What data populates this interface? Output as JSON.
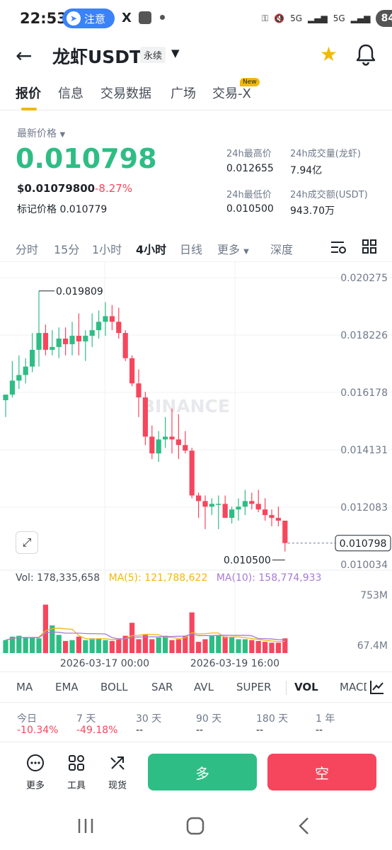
{
  "status_bar": {
    "time": "22:53",
    "notice": "注意",
    "x_glyph": "X",
    "signal_a": "5G",
    "signal_b": "5G",
    "battery": "84"
  },
  "header": {
    "title": "龙虾USDT",
    "tag": "永续",
    "icons": [
      "back-arrow-icon",
      "caret-down-icon",
      "star-icon",
      "bell-icon"
    ],
    "star_color": "#f0b90b"
  },
  "tabs": [
    {
      "label": "报价",
      "active": true
    },
    {
      "label": "信息"
    },
    {
      "label": "交易数据"
    },
    {
      "label": "广场"
    },
    {
      "label": "交易-X",
      "badge": "New"
    }
  ],
  "price": {
    "label": "最新价格",
    "last": "0.010798",
    "usd": "$0.01079800",
    "change": "-8.27%",
    "mark_label": "标记价格",
    "mark_value": "0.010779",
    "high_label": "24h最高价",
    "high_value": "0.012655",
    "low_label": "24h最低价",
    "low_value": "0.010500",
    "vol_label": "24h成交量(龙虾)",
    "vol_value": "7.94亿",
    "turnover_label": "24h成交额(USDT)",
    "turnover_value": "943.70万"
  },
  "intervals": [
    "分时",
    "15分",
    "1小时",
    "4小时",
    "日线",
    "更多",
    "深度"
  ],
  "active_interval": "4小时",
  "chart_data": {
    "type": "candlestick",
    "y_ticks": [
      "0.020275",
      "0.018226",
      "0.016178",
      "0.014131",
      "0.012083",
      "0.010034"
    ],
    "ylim": [
      0.010034,
      0.020275
    ],
    "watermark": "BINANCE",
    "high_annotation": "0.019809",
    "low_annotation": "0.010500",
    "current_price_label": "0.010798",
    "x_labels": [
      "2026-03-17 00:00",
      "2026-03-19 16:00"
    ],
    "colors": {
      "up": "#2ebd85",
      "down": "#f6465d"
    },
    "candles": [
      {
        "o": 0.0159,
        "h": 0.0161,
        "l": 0.0153,
        "c": 0.0161
      },
      {
        "o": 0.0161,
        "h": 0.0173,
        "l": 0.016,
        "c": 0.0166
      },
      {
        "o": 0.0166,
        "h": 0.0175,
        "l": 0.0163,
        "c": 0.0168
      },
      {
        "o": 0.0168,
        "h": 0.0174,
        "l": 0.0165,
        "c": 0.0171
      },
      {
        "o": 0.0171,
        "h": 0.0183,
        "l": 0.0169,
        "c": 0.0177
      },
      {
        "o": 0.0177,
        "h": 0.0198,
        "l": 0.0171,
        "c": 0.0183
      },
      {
        "o": 0.0183,
        "h": 0.0186,
        "l": 0.0175,
        "c": 0.0177
      },
      {
        "o": 0.0177,
        "h": 0.0184,
        "l": 0.0175,
        "c": 0.0178
      },
      {
        "o": 0.0178,
        "h": 0.0185,
        "l": 0.0174,
        "c": 0.0181
      },
      {
        "o": 0.0181,
        "h": 0.0185,
        "l": 0.0175,
        "c": 0.0179
      },
      {
        "o": 0.0179,
        "h": 0.0187,
        "l": 0.0175,
        "c": 0.0182
      },
      {
        "o": 0.0182,
        "h": 0.019,
        "l": 0.0175,
        "c": 0.018
      },
      {
        "o": 0.018,
        "h": 0.0184,
        "l": 0.0173,
        "c": 0.0182
      },
      {
        "o": 0.0182,
        "h": 0.019,
        "l": 0.0178,
        "c": 0.0184
      },
      {
        "o": 0.0184,
        "h": 0.0191,
        "l": 0.0181,
        "c": 0.0187
      },
      {
        "o": 0.0187,
        "h": 0.0194,
        "l": 0.0182,
        "c": 0.0189
      },
      {
        "o": 0.0189,
        "h": 0.0193,
        "l": 0.0184,
        "c": 0.0187
      },
      {
        "o": 0.0187,
        "h": 0.0192,
        "l": 0.0181,
        "c": 0.0183
      },
      {
        "o": 0.0183,
        "h": 0.0184,
        "l": 0.0173,
        "c": 0.0174
      },
      {
        "o": 0.0174,
        "h": 0.0175,
        "l": 0.0164,
        "c": 0.0165
      },
      {
        "o": 0.0165,
        "h": 0.017,
        "l": 0.0153,
        "c": 0.016
      },
      {
        "o": 0.016,
        "h": 0.0162,
        "l": 0.0143,
        "c": 0.0146
      },
      {
        "o": 0.0146,
        "h": 0.015,
        "l": 0.0138,
        "c": 0.014
      },
      {
        "o": 0.014,
        "h": 0.0148,
        "l": 0.0137,
        "c": 0.0145
      },
      {
        "o": 0.0145,
        "h": 0.0153,
        "l": 0.0142,
        "c": 0.0146
      },
      {
        "o": 0.0146,
        "h": 0.0156,
        "l": 0.014,
        "c": 0.0145
      },
      {
        "o": 0.0145,
        "h": 0.0154,
        "l": 0.0138,
        "c": 0.0143
      },
      {
        "o": 0.0143,
        "h": 0.0148,
        "l": 0.014,
        "c": 0.0141
      },
      {
        "o": 0.0141,
        "h": 0.0142,
        "l": 0.0124,
        "c": 0.0125
      },
      {
        "o": 0.0125,
        "h": 0.0126,
        "l": 0.0117,
        "c": 0.0123
      },
      {
        "o": 0.0123,
        "h": 0.0125,
        "l": 0.0113,
        "c": 0.0121
      },
      {
        "o": 0.0121,
        "h": 0.0124,
        "l": 0.0118,
        "c": 0.0122
      },
      {
        "o": 0.0122,
        "h": 0.0125,
        "l": 0.0113,
        "c": 0.0122
      },
      {
        "o": 0.0122,
        "h": 0.0125,
        "l": 0.0117,
        "c": 0.0117
      },
      {
        "o": 0.0117,
        "h": 0.0121,
        "l": 0.0115,
        "c": 0.012
      },
      {
        "o": 0.012,
        "h": 0.0124,
        "l": 0.0116,
        "c": 0.0121
      },
      {
        "o": 0.0121,
        "h": 0.0127,
        "l": 0.0118,
        "c": 0.0123
      },
      {
        "o": 0.0123,
        "h": 0.0126,
        "l": 0.012,
        "c": 0.0122
      },
      {
        "o": 0.0122,
        "h": 0.0127,
        "l": 0.0119,
        "c": 0.012
      },
      {
        "o": 0.012,
        "h": 0.0124,
        "l": 0.0116,
        "c": 0.0118
      },
      {
        "o": 0.0118,
        "h": 0.012,
        "l": 0.0114,
        "c": 0.0117
      },
      {
        "o": 0.0117,
        "h": 0.0121,
        "l": 0.0114,
        "c": 0.0116
      },
      {
        "o": 0.0116,
        "h": 0.0116,
        "l": 0.0105,
        "c": 0.0108
      }
    ],
    "volume": {
      "label": "Vol: 178,335,658",
      "ma5_label": "MA(5): 121,788,622",
      "ma10_label": "MA(10): 158,774,933",
      "ticks": [
        "753M",
        "67.4M"
      ],
      "max": 753,
      "values": [
        150,
        190,
        200,
        180,
        180,
        170,
        560,
        320,
        210,
        140,
        150,
        190,
        150,
        170,
        170,
        150,
        140,
        170,
        200,
        350,
        160,
        210,
        160,
        180,
        200,
        150,
        160,
        200,
        470,
        130,
        160,
        200,
        200,
        190,
        180,
        160,
        160,
        150,
        140,
        130,
        120,
        120,
        170
      ],
      "ma5_color": "#f0b90b",
      "ma10_color": "#a77bd6"
    }
  },
  "indicators": [
    "MA",
    "EMA",
    "BOLL",
    "SAR",
    "AVL",
    "SUPER",
    "VOL",
    "MACD"
  ],
  "active_indicator": "VOL",
  "performance": [
    {
      "label": "今日",
      "value": "-10.34%"
    },
    {
      "label": "7 天",
      "value": "-49.18%"
    },
    {
      "label": "30 天",
      "value": "--"
    },
    {
      "label": "90 天",
      "value": "--"
    },
    {
      "label": "180 天",
      "value": "--"
    },
    {
      "label": "1 年",
      "value": "--"
    }
  ],
  "bottom": {
    "more": "更多",
    "tools": "工具",
    "spot": "现货",
    "long": "多",
    "short": "空"
  }
}
